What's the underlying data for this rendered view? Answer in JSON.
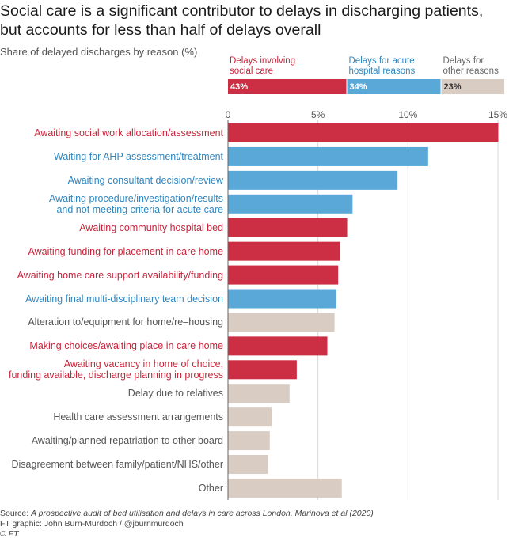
{
  "title": "Social care is a significant contributor to delays in discharging patients, but accounts for less than half of delays overall",
  "subtitle": "Share of delayed discharges by reason (%)",
  "chart_data": [
    {
      "type": "stacked_bar",
      "xlim": [
        0,
        100
      ],
      "series": [
        {
          "name": "Delays involving\nsocial care",
          "color": "#cc2f44",
          "label_color": "#c8243a",
          "value_label_color": "#ffffff",
          "values": [
            43
          ],
          "value_labels": [
            "43%"
          ]
        },
        {
          "name": "Delays for acute\nhospital reasons",
          "color": "#5aa8d8",
          "label_color": "#2f86bf",
          "value_label_color": "#ffffff",
          "values": [
            34
          ],
          "value_labels": [
            "34%"
          ]
        },
        {
          "name": "Delays for\nother reasons",
          "color": "#d9ccc3",
          "label_color": "#666666",
          "value_label_color": "#333333",
          "values": [
            23
          ],
          "value_labels": [
            "23%"
          ]
        }
      ]
    },
    {
      "type": "barh",
      "categories": [
        "Awaiting social work allocation/assessment",
        "Waiting for AHP assessment/treatment",
        "Awaiting consultant decision/review",
        "Awaiting procedure/investigation/results\nand not meeting criteria for acute care",
        "Awaiting community hospital bed",
        "Awaiting funding for placement in care home",
        "Awaiting home care support availability/funding",
        "Awaiting final multi-disciplinary team decision",
        "Alteration to/equipment for home/re–housing",
        "Making choices/awaiting place in care home",
        "Awaiting vacancy in home of choice,\nfunding available, discharge planning in progress",
        "Delay due to relatives",
        "Health care assessment arrangements",
        "Awaiting/planned repatriation to other board",
        "Disagreement between family/patient/NHS/other",
        "Other"
      ],
      "values": [
        15.0,
        11.1,
        9.4,
        6.9,
        6.6,
        6.2,
        6.1,
        6.0,
        5.9,
        5.5,
        3.8,
        3.4,
        2.4,
        2.3,
        2.2,
        6.3
      ],
      "colors": [
        "#cc2f44",
        "#5aa8d8",
        "#5aa8d8",
        "#5aa8d8",
        "#cc2f44",
        "#cc2f44",
        "#cc2f44",
        "#5aa8d8",
        "#d9ccc3",
        "#cc2f44",
        "#cc2f44",
        "#d9ccc3",
        "#d9ccc3",
        "#d9ccc3",
        "#d9ccc3",
        "#d9ccc3"
      ],
      "label_colors": [
        "#c8243a",
        "#2f86bf",
        "#2f86bf",
        "#2f86bf",
        "#c8243a",
        "#c8243a",
        "#c8243a",
        "#2f86bf",
        "#555555",
        "#c8243a",
        "#c8243a",
        "#555555",
        "#555555",
        "#555555",
        "#555555",
        "#555555"
      ],
      "xlim": [
        0,
        15
      ],
      "xticks": [
        0,
        {
          "value": 5,
          "label": "5%"
        },
        {
          "value": 10,
          "label": "10%"
        },
        {
          "value": 15,
          "label": "15%"
        }
      ],
      "grid": true
    }
  ],
  "source": {
    "prefix": "Source: ",
    "text": "A prospective audit of bed utilisation and delays in care across London, Marinova et al (2020)",
    "credit": "FT graphic: John Burn-Murdoch / @jburnmurdoch",
    "copyright": "© FT"
  }
}
